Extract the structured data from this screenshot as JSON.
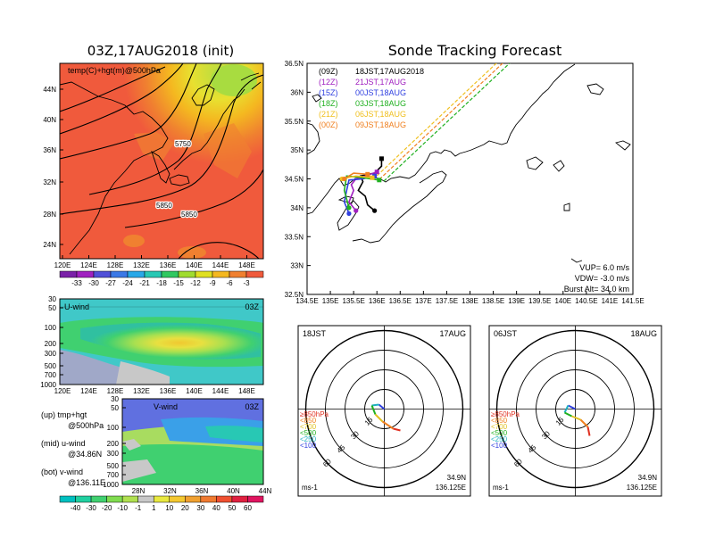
{
  "map_panel": {
    "title": "03Z,17AUG2018 (init)",
    "label": "temp(C)+hgt(m)@500hPa",
    "lat_labels": [
      "44N",
      "40N",
      "36N",
      "32N",
      "28N",
      "24N"
    ],
    "lon_labels": [
      "120E",
      "124E",
      "128E",
      "132E",
      "136E",
      "140E",
      "144E",
      "148E"
    ],
    "contour_labels": [
      "5750",
      "5850",
      "5850"
    ],
    "colorbar_labels": [
      "-33",
      "-30",
      "-27",
      "-24",
      "-21",
      "-18",
      "-15",
      "-12",
      "-9",
      "-6",
      "-3"
    ],
    "colorbar_colors": [
      "#7a20a8",
      "#a020c0",
      "#5050d8",
      "#3a78e6",
      "#28a8e8",
      "#28c8b4",
      "#30c860",
      "#a0dc30",
      "#e0e020",
      "#f4b820",
      "#f08030",
      "#f05a3c"
    ]
  },
  "uwind_panel": {
    "label": "U-wind",
    "time": "03Z",
    "p_labels": [
      "30",
      "50",
      "100",
      "200",
      "300",
      "500",
      "700",
      "1000"
    ],
    "lon_labels": [
      "120E",
      "124E",
      "128E",
      "132E",
      "136E",
      "140E",
      "144E",
      "148E"
    ]
  },
  "vwind_panel": {
    "label": "V-wind",
    "time": "03Z",
    "p_labels": [
      "30",
      "50",
      "100",
      "200",
      "300",
      "500",
      "700",
      "1000"
    ],
    "lat_labels": [
      "28N",
      "32N",
      "36N",
      "40N",
      "44N"
    ],
    "colorbar_labels": [
      "-40",
      "-30",
      "-20",
      "-10",
      "-1",
      "1",
      "10",
      "20",
      "30",
      "40",
      "50",
      "60"
    ],
    "colorbar_colors": [
      "#00c0c0",
      "#20d0a0",
      "#40d070",
      "#80dc50",
      "#b0e050",
      "#c8c8c8",
      "#e8e840",
      "#f4c830",
      "#f0a030",
      "#f07a30",
      "#f05030",
      "#e02040",
      "#e01460"
    ]
  },
  "notes": {
    "up": "(up)  tmp+hgt",
    "up2": "@500hPa",
    "mid": "(mid)  u-wind",
    "mid2": "@34.86N",
    "bot": "(bot)  v-wind",
    "bot2": "@136.11E"
  },
  "track_panel": {
    "title": "Sonde Tracking Forecast",
    "lat_labels": [
      "36.5N",
      "36N",
      "35.5N",
      "35N",
      "34.5N",
      "34N",
      "33.5N",
      "33N",
      "32.5N"
    ],
    "lon_labels": [
      "134.5E",
      "135E",
      "135.5E",
      "136E",
      "136.5E",
      "137E",
      "137.5E",
      "138E",
      "138.5E",
      "139E",
      "139.5E",
      "140E",
      "140.5E",
      "141E",
      "141.5E"
    ],
    "legend": [
      {
        "run": "(09Z)",
        "valid": "18JST,17AUG2018",
        "color": "#000000"
      },
      {
        "run": "(12Z)",
        "valid": "21JST,17AUG",
        "color": "#a020c0"
      },
      {
        "run": "(15Z)",
        "valid": "00JST,18AUG",
        "color": "#3040e0"
      },
      {
        "run": "(18Z)",
        "valid": "03JST,18AUG",
        "color": "#20b020"
      },
      {
        "run": "(21Z)",
        "valid": "06JST,18AUG",
        "color": "#f0c020"
      },
      {
        "run": "(00Z)",
        "valid": "09JST,18AUG",
        "color": "#f08020"
      }
    ],
    "params": {
      "vup": "VUP=  6.0  m/s",
      "vdw": "VDW= -3.0  m/s",
      "burst": "Burst Alt=  34.0  km"
    }
  },
  "hodographs": [
    {
      "time": "18JST",
      "date": "17AUG",
      "lat": "34.9N",
      "lon": "136.125E",
      "unit": "ms-1"
    },
    {
      "time": "06JST",
      "date": "18AUG",
      "lat": "34.9N",
      "lon": "136.125E",
      "unit": "ms-1"
    }
  ],
  "hodo_legend": [
    {
      "text": "≥850hPa",
      "color": "#e03020"
    },
    {
      "text": "<850",
      "color": "#f08020"
    },
    {
      "text": "<700",
      "color": "#e0c020"
    },
    {
      "text": "<500",
      "color": "#20b020"
    },
    {
      "text": "<250",
      "color": "#20b0c0"
    },
    {
      "text": "<100",
      "color": "#3040e0"
    }
  ],
  "hodo_ring_labels": [
    "15",
    "30",
    "45",
    "60"
  ],
  "chart_data": [
    {
      "type": "line",
      "title": "Sonde Tracking Forecast",
      "xlim": [
        134.5,
        141.5
      ],
      "ylim": [
        32.5,
        36.5
      ],
      "series": [
        {
          "name": "(09Z) 18JST,17AUG2018",
          "color": "#000000",
          "x": [
            136.1,
            136.1,
            135.95,
            135.65,
            135.7,
            135.6,
            135.75,
            135.8,
            135.95
          ],
          "y": [
            34.85,
            34.72,
            34.6,
            34.55,
            34.45,
            34.3,
            34.2,
            34.05,
            33.95
          ]
        },
        {
          "name": "(12Z) 21JST,17AUG",
          "color": "#a020c0",
          "x": [
            136.0,
            135.75,
            135.55,
            135.45,
            135.5,
            135.4,
            135.55
          ],
          "y": [
            34.62,
            34.55,
            34.5,
            34.4,
            34.3,
            34.1,
            33.95
          ]
        },
        {
          "name": "(15Z) 00JST,18AUG",
          "color": "#3040e0",
          "x": [
            135.95,
            135.7,
            135.4,
            135.35,
            135.3,
            135.4
          ],
          "y": [
            34.55,
            34.5,
            34.48,
            34.3,
            34.1,
            33.9
          ]
        },
        {
          "name": "(18Z) 03JST,18AUG",
          "color": "#20b020",
          "x": [
            136.05,
            135.7,
            135.35,
            135.3,
            135.4
          ],
          "y": [
            34.48,
            34.52,
            34.55,
            34.3,
            34.0
          ]
        },
        {
          "name": "(21Z) 06JST,18AUG",
          "color": "#f0c020",
          "x": [
            135.9,
            135.55,
            135.25
          ],
          "y": [
            34.52,
            34.55,
            34.5
          ]
        },
        {
          "name": "(00Z) 09JST,18AUG",
          "color": "#f08020",
          "x": [
            135.8,
            135.5,
            135.3
          ],
          "y": [
            34.58,
            34.6,
            34.5
          ]
        }
      ]
    }
  ]
}
